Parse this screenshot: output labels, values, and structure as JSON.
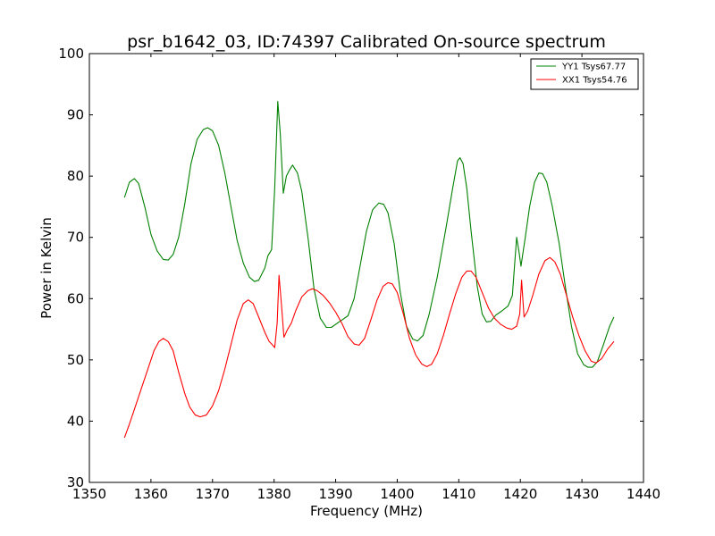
{
  "chart_data": {
    "type": "line",
    "title": "psr_b1642_03, ID:74397 Calibrated On-source spectrum",
    "xlabel": "Frequency (MHz)",
    "ylabel": "Power in Kelvin",
    "xlim": [
      1350,
      1440
    ],
    "ylim": [
      30,
      100
    ],
    "xticks": [
      "1350",
      "1360",
      "1370",
      "1380",
      "1390",
      "1400",
      "1410",
      "1420",
      "1430",
      "1440"
    ],
    "yticks": [
      "30",
      "40",
      "50",
      "60",
      "70",
      "80",
      "90",
      "100"
    ],
    "grid": false,
    "legend_position": "top-right",
    "series": [
      {
        "name": "YY1 Tsys67.77",
        "color": "#008000",
        "points": [
          [
            1355.7,
            76.5
          ],
          [
            1356.5,
            79.0
          ],
          [
            1357.3,
            79.6
          ],
          [
            1358.0,
            78.8
          ],
          [
            1359.0,
            75.0
          ],
          [
            1360.0,
            70.5
          ],
          [
            1361.0,
            67.8
          ],
          [
            1362.0,
            66.4
          ],
          [
            1362.8,
            66.3
          ],
          [
            1363.6,
            67.2
          ],
          [
            1364.5,
            70.0
          ],
          [
            1365.5,
            75.5
          ],
          [
            1366.5,
            82.0
          ],
          [
            1367.5,
            86.0
          ],
          [
            1368.5,
            87.6
          ],
          [
            1369.2,
            87.9
          ],
          [
            1370.0,
            87.4
          ],
          [
            1371.0,
            85.0
          ],
          [
            1372.0,
            80.5
          ],
          [
            1373.0,
            75.0
          ],
          [
            1374.0,
            69.5
          ],
          [
            1375.0,
            65.8
          ],
          [
            1376.0,
            63.5
          ],
          [
            1376.8,
            62.8
          ],
          [
            1377.5,
            63.0
          ],
          [
            1378.5,
            65.0
          ],
          [
            1379.0,
            67.0
          ],
          [
            1379.6,
            68.0
          ],
          [
            1380.1,
            78.0
          ],
          [
            1380.6,
            92.2
          ],
          [
            1381.0,
            87.0
          ],
          [
            1381.5,
            77.2
          ],
          [
            1382.0,
            80.0
          ],
          [
            1382.5,
            81.0
          ],
          [
            1383.0,
            81.8
          ],
          [
            1383.8,
            80.5
          ],
          [
            1384.5,
            77.5
          ],
          [
            1385.5,
            70.0
          ],
          [
            1386.5,
            61.5
          ],
          [
            1387.5,
            56.8
          ],
          [
            1388.5,
            55.3
          ],
          [
            1389.3,
            55.3
          ],
          [
            1390.0,
            55.8
          ],
          [
            1391.0,
            56.5
          ],
          [
            1392.0,
            57.2
          ],
          [
            1393.0,
            60.0
          ],
          [
            1394.0,
            65.5
          ],
          [
            1395.0,
            71.0
          ],
          [
            1396.0,
            74.5
          ],
          [
            1397.0,
            75.6
          ],
          [
            1397.8,
            75.4
          ],
          [
            1398.5,
            74.0
          ],
          [
            1399.5,
            69.0
          ],
          [
            1400.5,
            61.0
          ],
          [
            1401.5,
            55.5
          ],
          [
            1402.5,
            53.4
          ],
          [
            1403.3,
            53.1
          ],
          [
            1404.2,
            54.0
          ],
          [
            1405.2,
            57.5
          ],
          [
            1406.5,
            63.5
          ],
          [
            1408.0,
            72.0
          ],
          [
            1409.0,
            78.0
          ],
          [
            1409.8,
            82.5
          ],
          [
            1410.2,
            83.0
          ],
          [
            1410.7,
            82.0
          ],
          [
            1411.3,
            78.0
          ],
          [
            1412.0,
            71.0
          ],
          [
            1413.0,
            62.0
          ],
          [
            1413.8,
            57.5
          ],
          [
            1414.5,
            56.2
          ],
          [
            1415.2,
            56.3
          ],
          [
            1416.0,
            57.3
          ],
          [
            1417.0,
            58.0
          ],
          [
            1418.0,
            58.8
          ],
          [
            1418.7,
            60.5
          ],
          [
            1419.1,
            66.0
          ],
          [
            1419.4,
            70.0
          ],
          [
            1419.8,
            67.5
          ],
          [
            1420.1,
            65.3
          ],
          [
            1420.8,
            70.0
          ],
          [
            1421.5,
            75.0
          ],
          [
            1422.3,
            79.0
          ],
          [
            1423.0,
            80.5
          ],
          [
            1423.6,
            80.4
          ],
          [
            1424.3,
            79.0
          ],
          [
            1425.2,
            75.0
          ],
          [
            1426.3,
            69.0
          ],
          [
            1427.3,
            62.0
          ],
          [
            1428.3,
            55.5
          ],
          [
            1429.3,
            51.0
          ],
          [
            1430.3,
            49.2
          ],
          [
            1431.0,
            48.8
          ],
          [
            1431.7,
            48.8
          ],
          [
            1432.5,
            49.7
          ],
          [
            1433.5,
            52.5
          ],
          [
            1434.5,
            55.5
          ],
          [
            1435.2,
            57.0
          ]
        ]
      },
      {
        "name": "XX1 Tsys54.76",
        "color": "#ff0000",
        "points": [
          [
            1355.7,
            37.3
          ],
          [
            1356.5,
            39.5
          ],
          [
            1357.5,
            42.5
          ],
          [
            1358.5,
            45.5
          ],
          [
            1359.5,
            48.5
          ],
          [
            1360.5,
            51.5
          ],
          [
            1361.3,
            53.0
          ],
          [
            1362.0,
            53.5
          ],
          [
            1362.8,
            53.0
          ],
          [
            1363.6,
            51.5
          ],
          [
            1364.5,
            48.0
          ],
          [
            1365.5,
            44.5
          ],
          [
            1366.3,
            42.3
          ],
          [
            1367.2,
            41.0
          ],
          [
            1368.0,
            40.7
          ],
          [
            1369.0,
            41.0
          ],
          [
            1370.0,
            42.5
          ],
          [
            1371.0,
            45.0
          ],
          [
            1372.0,
            48.5
          ],
          [
            1373.0,
            52.5
          ],
          [
            1374.0,
            56.5
          ],
          [
            1375.0,
            59.2
          ],
          [
            1375.8,
            59.8
          ],
          [
            1376.6,
            59.2
          ],
          [
            1377.5,
            57.0
          ],
          [
            1378.5,
            54.5
          ],
          [
            1379.2,
            53.0
          ],
          [
            1379.7,
            52.5
          ],
          [
            1380.1,
            52.0
          ],
          [
            1380.5,
            56.0
          ],
          [
            1380.8,
            63.8
          ],
          [
            1381.2,
            59.0
          ],
          [
            1381.6,
            53.7
          ],
          [
            1382.2,
            55.0
          ],
          [
            1382.8,
            56.0
          ],
          [
            1383.5,
            58.0
          ],
          [
            1384.5,
            60.3
          ],
          [
            1385.5,
            61.3
          ],
          [
            1386.2,
            61.6
          ],
          [
            1387.0,
            61.3
          ],
          [
            1388.0,
            60.5
          ],
          [
            1389.0,
            59.3
          ],
          [
            1390.0,
            57.8
          ],
          [
            1391.0,
            56.0
          ],
          [
            1392.0,
            53.8
          ],
          [
            1393.0,
            52.6
          ],
          [
            1393.8,
            52.4
          ],
          [
            1394.7,
            53.5
          ],
          [
            1395.7,
            56.5
          ],
          [
            1396.7,
            59.7
          ],
          [
            1397.7,
            62.0
          ],
          [
            1398.5,
            62.6
          ],
          [
            1399.2,
            62.4
          ],
          [
            1400.0,
            61.0
          ],
          [
            1401.0,
            57.5
          ],
          [
            1402.0,
            53.5
          ],
          [
            1403.0,
            50.8
          ],
          [
            1404.0,
            49.3
          ],
          [
            1404.8,
            48.9
          ],
          [
            1405.6,
            49.3
          ],
          [
            1406.5,
            51.0
          ],
          [
            1407.5,
            54.0
          ],
          [
            1408.5,
            57.5
          ],
          [
            1409.5,
            60.8
          ],
          [
            1410.5,
            63.5
          ],
          [
            1411.3,
            64.5
          ],
          [
            1412.0,
            64.5
          ],
          [
            1412.8,
            63.5
          ],
          [
            1413.8,
            61.0
          ],
          [
            1414.8,
            58.5
          ],
          [
            1415.8,
            56.8
          ],
          [
            1416.8,
            55.8
          ],
          [
            1417.8,
            55.2
          ],
          [
            1418.6,
            55.0
          ],
          [
            1419.4,
            55.5
          ],
          [
            1419.9,
            57.5
          ],
          [
            1420.2,
            63.0
          ],
          [
            1420.6,
            57.0
          ],
          [
            1421.2,
            58.0
          ],
          [
            1422.0,
            60.5
          ],
          [
            1423.0,
            64.0
          ],
          [
            1424.0,
            66.2
          ],
          [
            1424.8,
            66.7
          ],
          [
            1425.6,
            66.0
          ],
          [
            1426.5,
            64.0
          ],
          [
            1427.5,
            60.5
          ],
          [
            1428.5,
            57.0
          ],
          [
            1429.5,
            54.0
          ],
          [
            1430.5,
            51.5
          ],
          [
            1431.5,
            49.8
          ],
          [
            1432.3,
            49.5
          ],
          [
            1433.2,
            50.2
          ],
          [
            1434.2,
            51.8
          ],
          [
            1435.2,
            53.0
          ]
        ]
      }
    ]
  }
}
